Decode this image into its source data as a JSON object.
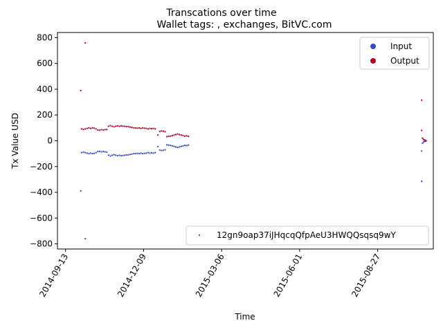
{
  "chart_data": {
    "type": "scatter",
    "suptitle": "Transcations over time",
    "title": "Wallet tags: , exchanges, BitVC.com",
    "xlabel": "Time",
    "ylabel": "Tx Value USD",
    "xlim": [
      "2014-09-04",
      "2015-10-28"
    ],
    "ylim": [
      -840,
      840
    ],
    "x_ticks": [
      "2014-09-13",
      "2014-12-09",
      "2015-03-06",
      "2015-06-01",
      "2015-08-27"
    ],
    "y_ticks": [
      800,
      600,
      400,
      200,
      0,
      -200,
      -400,
      -600,
      -800
    ],
    "y_tick_labels": [
      "800",
      "600",
      "400",
      "200",
      "0",
      "−200",
      "−400",
      "−600",
      "−800"
    ],
    "grid": false,
    "legend": {
      "placement": "top-right",
      "entries": [
        {
          "label": "Input",
          "color": "#3b4cc0"
        },
        {
          "label": "Output",
          "color": "#b40426"
        }
      ]
    },
    "legend2": {
      "placement": "lower-right",
      "entries": [
        {
          "label": "12gn9oap37iJHqcqQfpAeU3HWQQsqsq9wY",
          "color": "#1f77b4"
        }
      ]
    },
    "series": [
      {
        "name": "Output",
        "color": "#b40426",
        "points": [
          [
            "2014-09-30",
            390
          ],
          [
            "2014-10-05",
            760
          ],
          [
            "2014-10-01",
            92
          ],
          [
            "2014-10-03",
            88
          ],
          [
            "2014-10-05",
            92
          ],
          [
            "2014-10-07",
            96
          ],
          [
            "2014-10-09",
            100
          ],
          [
            "2014-10-11",
            96
          ],
          [
            "2014-10-13",
            100
          ],
          [
            "2014-10-15",
            98
          ],
          [
            "2014-10-17",
            92
          ],
          [
            "2014-10-19",
            84
          ],
          [
            "2014-10-21",
            82
          ],
          [
            "2014-10-23",
            86
          ],
          [
            "2014-10-25",
            84
          ],
          [
            "2014-10-27",
            86
          ],
          [
            "2014-10-29",
            88
          ],
          [
            "2014-10-31",
            112
          ],
          [
            "2014-11-02",
            118
          ],
          [
            "2014-11-04",
            112
          ],
          [
            "2014-11-06",
            108
          ],
          [
            "2014-11-08",
            112
          ],
          [
            "2014-11-10",
            116
          ],
          [
            "2014-11-12",
            112
          ],
          [
            "2014-11-14",
            116
          ],
          [
            "2014-11-16",
            114
          ],
          [
            "2014-11-18",
            112
          ],
          [
            "2014-11-20",
            110
          ],
          [
            "2014-11-22",
            110
          ],
          [
            "2014-11-24",
            106
          ],
          [
            "2014-11-26",
            104
          ],
          [
            "2014-11-28",
            100
          ],
          [
            "2014-11-30",
            100
          ],
          [
            "2014-12-02",
            98
          ],
          [
            "2014-12-04",
            100
          ],
          [
            "2014-12-06",
            96
          ],
          [
            "2014-12-08",
            100
          ],
          [
            "2014-12-10",
            98
          ],
          [
            "2014-12-12",
            96
          ],
          [
            "2014-12-14",
            92
          ],
          [
            "2014-12-16",
            96
          ],
          [
            "2014-12-18",
            94
          ],
          [
            "2014-12-20",
            96
          ],
          [
            "2014-12-22",
            92
          ],
          [
            "2014-12-25",
            45
          ],
          [
            "2014-12-27",
            72
          ],
          [
            "2014-12-29",
            76
          ],
          [
            "2014-12-31",
            74
          ],
          [
            "2015-01-02",
            70
          ],
          [
            "2015-01-04",
            32
          ],
          [
            "2015-01-06",
            34
          ],
          [
            "2015-01-08",
            36
          ],
          [
            "2015-01-10",
            40
          ],
          [
            "2015-01-12",
            44
          ],
          [
            "2015-01-14",
            48
          ],
          [
            "2015-01-16",
            52
          ],
          [
            "2015-01-18",
            48
          ],
          [
            "2015-01-20",
            44
          ],
          [
            "2015-01-22",
            40
          ],
          [
            "2015-01-24",
            36
          ],
          [
            "2015-01-26",
            38
          ],
          [
            "2015-01-28",
            34
          ],
          [
            "2015-10-15",
            315
          ],
          [
            "2015-10-15",
            80
          ],
          [
            "2015-10-16",
            20
          ],
          [
            "2015-10-17",
            10
          ],
          [
            "2015-10-18",
            6
          ],
          [
            "2015-10-19",
            4
          ],
          [
            "2015-10-20",
            2
          ]
        ]
      },
      {
        "name": "Input",
        "color": "#3b4cc0",
        "points": [
          [
            "2014-09-30",
            -390
          ],
          [
            "2014-10-05",
            -760
          ],
          [
            "2014-10-01",
            -92
          ],
          [
            "2014-10-03",
            -88
          ],
          [
            "2014-10-05",
            -92
          ],
          [
            "2014-10-07",
            -96
          ],
          [
            "2014-10-09",
            -100
          ],
          [
            "2014-10-11",
            -96
          ],
          [
            "2014-10-13",
            -100
          ],
          [
            "2014-10-15",
            -98
          ],
          [
            "2014-10-17",
            -92
          ],
          [
            "2014-10-19",
            -84
          ],
          [
            "2014-10-21",
            -82
          ],
          [
            "2014-10-23",
            -86
          ],
          [
            "2014-10-25",
            -84
          ],
          [
            "2014-10-27",
            -86
          ],
          [
            "2014-10-29",
            -88
          ],
          [
            "2014-10-31",
            -112
          ],
          [
            "2014-11-02",
            -118
          ],
          [
            "2014-11-04",
            -112
          ],
          [
            "2014-11-06",
            -108
          ],
          [
            "2014-11-08",
            -112
          ],
          [
            "2014-11-10",
            -116
          ],
          [
            "2014-11-12",
            -112
          ],
          [
            "2014-11-14",
            -116
          ],
          [
            "2014-11-16",
            -114
          ],
          [
            "2014-11-18",
            -112
          ],
          [
            "2014-11-20",
            -110
          ],
          [
            "2014-11-22",
            -110
          ],
          [
            "2014-11-24",
            -106
          ],
          [
            "2014-11-26",
            -104
          ],
          [
            "2014-11-28",
            -100
          ],
          [
            "2014-11-30",
            -100
          ],
          [
            "2014-12-02",
            -98
          ],
          [
            "2014-12-04",
            -100
          ],
          [
            "2014-12-06",
            -96
          ],
          [
            "2014-12-08",
            -100
          ],
          [
            "2014-12-10",
            -98
          ],
          [
            "2014-12-12",
            -96
          ],
          [
            "2014-12-14",
            -92
          ],
          [
            "2014-12-16",
            -96
          ],
          [
            "2014-12-18",
            -94
          ],
          [
            "2014-12-20",
            -96
          ],
          [
            "2014-12-22",
            -92
          ],
          [
            "2014-12-25",
            -45
          ],
          [
            "2014-12-27",
            -72
          ],
          [
            "2014-12-29",
            -76
          ],
          [
            "2014-12-31",
            -74
          ],
          [
            "2015-01-02",
            -70
          ],
          [
            "2015-01-04",
            -32
          ],
          [
            "2015-01-06",
            -34
          ],
          [
            "2015-01-08",
            -36
          ],
          [
            "2015-01-10",
            -40
          ],
          [
            "2015-01-12",
            -44
          ],
          [
            "2015-01-14",
            -48
          ],
          [
            "2015-01-16",
            -52
          ],
          [
            "2015-01-18",
            -48
          ],
          [
            "2015-01-20",
            -44
          ],
          [
            "2015-01-22",
            -40
          ],
          [
            "2015-01-24",
            -36
          ],
          [
            "2015-01-26",
            -38
          ],
          [
            "2015-01-28",
            -34
          ],
          [
            "2015-10-15",
            -315
          ],
          [
            "2015-10-15",
            -80
          ],
          [
            "2015-10-16",
            -20
          ],
          [
            "2015-10-17",
            -10
          ],
          [
            "2015-10-18",
            -6
          ],
          [
            "2015-10-19",
            -4
          ],
          [
            "2015-10-20",
            -2
          ]
        ]
      }
    ]
  }
}
